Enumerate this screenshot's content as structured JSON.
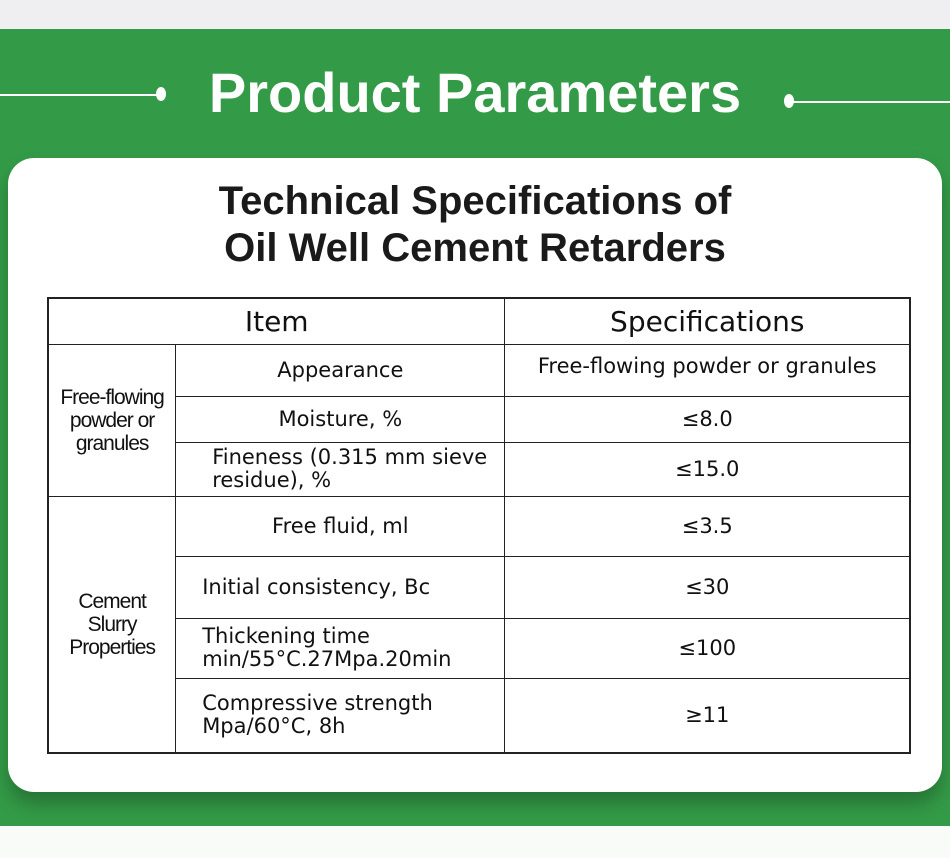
{
  "banner": {
    "title": "Product Parameters"
  },
  "card": {
    "title_line1": "Technical Specifications of",
    "title_line2": "Oil Well Cement Retarders"
  },
  "table": {
    "headers": [
      "Item",
      "Specifications"
    ],
    "groups": [
      {
        "name": "Free-flowing powder or granules",
        "rows": [
          {
            "item": "Appearance",
            "spec": "Free-flowing powder or granules"
          },
          {
            "item": "Moisture, %",
            "spec": "≤8.0"
          },
          {
            "item": "Fineness (0.315 mm sieve residue), %",
            "spec": "≤15.0"
          }
        ]
      },
      {
        "name": "Cement Slurry Properties",
        "rows": [
          {
            "item": "Free fluid, ml",
            "spec": "≤3.5"
          },
          {
            "item": "Initial consistency, Bc",
            "spec": "≤30"
          },
          {
            "item": "Thickening time min/55°C.27Mpa.20min",
            "spec": "≤100"
          },
          {
            "item": "Compressive strength Mpa/60°C, 8h",
            "spec": "≥11"
          }
        ]
      }
    ]
  },
  "colors": {
    "green": "#339b47"
  }
}
